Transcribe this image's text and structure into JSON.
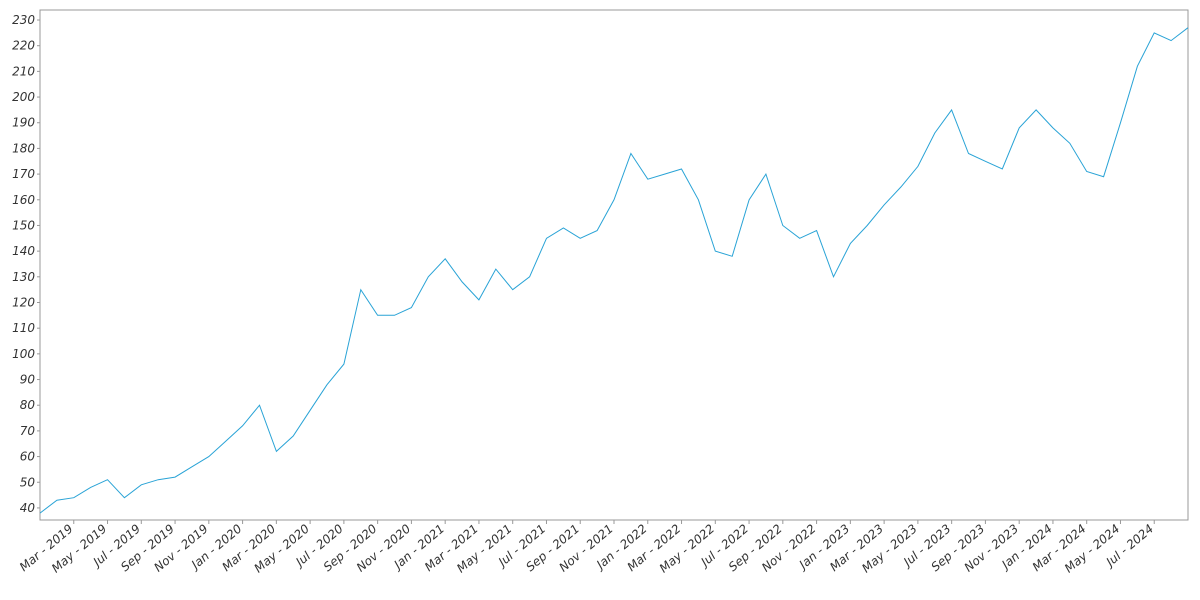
{
  "chart_data": {
    "type": "line",
    "x": [
      "2019-01",
      "2019-02",
      "2019-03",
      "2019-04",
      "2019-05",
      "2019-06",
      "2019-07",
      "2019-08",
      "2019-09",
      "2019-10",
      "2019-11",
      "2019-12",
      "2020-01",
      "2020-02",
      "2020-03",
      "2020-04",
      "2020-05",
      "2020-06",
      "2020-07",
      "2020-08",
      "2020-09",
      "2020-10",
      "2020-11",
      "2020-12",
      "2021-01",
      "2021-02",
      "2021-03",
      "2021-04",
      "2021-05",
      "2021-06",
      "2021-07",
      "2021-08",
      "2021-09",
      "2021-10",
      "2021-11",
      "2021-12",
      "2022-01",
      "2022-02",
      "2022-03",
      "2022-04",
      "2022-05",
      "2022-06",
      "2022-07",
      "2022-08",
      "2022-09",
      "2022-10",
      "2022-11",
      "2022-12",
      "2023-01",
      "2023-02",
      "2023-03",
      "2023-04",
      "2023-05",
      "2023-06",
      "2023-07",
      "2023-08",
      "2023-09",
      "2023-10",
      "2023-11",
      "2023-12",
      "2024-01",
      "2024-02",
      "2024-03",
      "2024-04",
      "2024-05",
      "2024-06",
      "2024-07",
      "2024-08",
      "2024-09"
    ],
    "series": [
      {
        "color": "#29a3d6",
        "values": [
          38,
          43,
          44,
          48,
          51,
          44,
          49,
          51,
          52,
          56,
          60,
          66,
          72,
          80,
          62,
          68,
          78,
          88,
          96,
          125,
          115,
          115,
          118,
          130,
          137,
          128,
          121,
          133,
          125,
          130,
          145,
          149,
          145,
          148,
          160,
          178,
          168,
          170,
          172,
          160,
          140,
          138,
          160,
          170,
          150,
          145,
          148,
          130,
          143,
          150,
          158,
          165,
          173,
          186,
          195,
          178,
          175,
          172,
          188,
          195,
          188,
          182,
          171,
          169,
          190,
          212,
          225,
          222,
          227
        ]
      }
    ],
    "xlim": [
      "2019-01",
      "2024-09"
    ],
    "ylim": [
      35.3,
      233.9
    ],
    "yticks": [
      40,
      50,
      60,
      70,
      80,
      90,
      100,
      110,
      120,
      130,
      140,
      150,
      160,
      170,
      180,
      190,
      200,
      210,
      220,
      230
    ],
    "xticks": [
      {
        "value": "2019-03",
        "label": "Mar - 2019"
      },
      {
        "value": "2019-05",
        "label": "May - 2019"
      },
      {
        "value": "2019-07",
        "label": "Jul - 2019"
      },
      {
        "value": "2019-09",
        "label": "Sep - 2019"
      },
      {
        "value": "2019-11",
        "label": "Nov - 2019"
      },
      {
        "value": "2020-01",
        "label": "Jan - 2020"
      },
      {
        "value": "2020-03",
        "label": "Mar - 2020"
      },
      {
        "value": "2020-05",
        "label": "May - 2020"
      },
      {
        "value": "2020-07",
        "label": "Jul - 2020"
      },
      {
        "value": "2020-09",
        "label": "Sep - 2020"
      },
      {
        "value": "2020-11",
        "label": "Nov - 2020"
      },
      {
        "value": "2021-01",
        "label": "Jan - 2021"
      },
      {
        "value": "2021-03",
        "label": "Mar - 2021"
      },
      {
        "value": "2021-05",
        "label": "May - 2021"
      },
      {
        "value": "2021-07",
        "label": "Jul - 2021"
      },
      {
        "value": "2021-09",
        "label": "Sep - 2021"
      },
      {
        "value": "2021-11",
        "label": "Nov - 2021"
      },
      {
        "value": "2022-01",
        "label": "Jan - 2022"
      },
      {
        "value": "2022-03",
        "label": "Mar - 2022"
      },
      {
        "value": "2022-05",
        "label": "May - 2022"
      },
      {
        "value": "2022-07",
        "label": "Jul - 2022"
      },
      {
        "value": "2022-09",
        "label": "Sep - 2022"
      },
      {
        "value": "2022-11",
        "label": "Nov - 2022"
      },
      {
        "value": "2023-01",
        "label": "Jan - 2023"
      },
      {
        "value": "2023-03",
        "label": "Mar - 2023"
      },
      {
        "value": "2023-05",
        "label": "May - 2023"
      },
      {
        "value": "2023-07",
        "label": "Jul - 2023"
      },
      {
        "value": "2023-09",
        "label": "Sep - 2023"
      },
      {
        "value": "2023-11",
        "label": "Nov - 2023"
      },
      {
        "value": "2024-01",
        "label": "Jan - 2024"
      },
      {
        "value": "2024-03",
        "label": "Mar - 2024"
      },
      {
        "value": "2024-05",
        "label": "May - 2024"
      },
      {
        "value": "2024-07",
        "label": "Jul - 2024"
      }
    ]
  }
}
